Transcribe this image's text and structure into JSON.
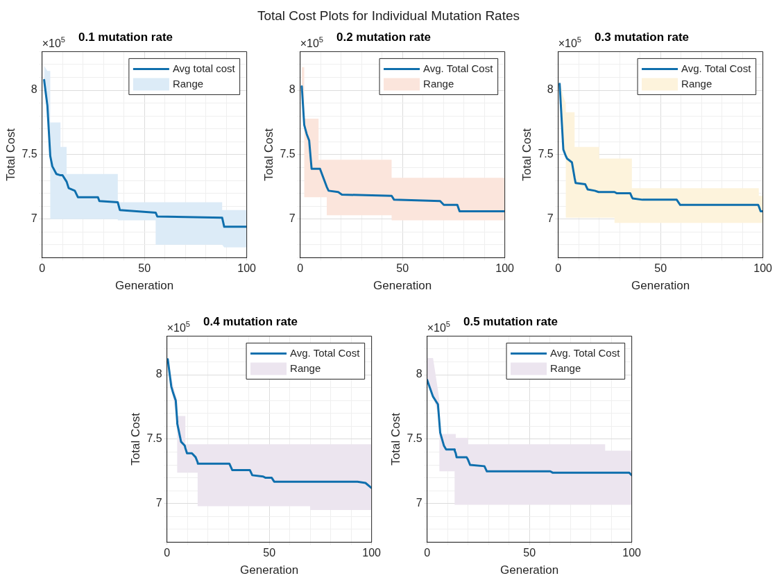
{
  "chart_data": [
    {
      "type": "line",
      "title": "0.1 mutation rate",
      "xlabel": "Generation",
      "ylabel": "Total Cost",
      "annotations": [
        "×10$^{5}$",
        "Total Cost Plots for Individual Mutation Rates"
      ],
      "xlim": [
        0,
        100
      ],
      "xticks": [
        0,
        {
          "value": 10,
          "label": null
        },
        {
          "value": 20,
          "label": null
        },
        {
          "value": 30,
          "label": null
        },
        {
          "value": 40,
          "label": null
        },
        50,
        {
          "value": 60,
          "label": null
        },
        {
          "value": 70,
          "label": null
        },
        {
          "value": 80,
          "label": null
        },
        {
          "value": 90,
          "label": null
        },
        100
      ],
      "ylim": [
        6.7,
        8.3
      ],
      "yticks": [
        {
          "value": 6.7,
          "label": null
        },
        {
          "value": 6.8,
          "label": null
        },
        {
          "value": 6.9,
          "label": null
        },
        7,
        {
          "value": 7.1,
          "label": null
        },
        {
          "value": 7.2,
          "label": null
        },
        {
          "value": 7.3,
          "label": null
        },
        {
          "value": 7.4,
          "label": null
        },
        7.5,
        {
          "value": 7.6,
          "label": null
        },
        {
          "value": 7.7,
          "label": null
        },
        {
          "value": 7.8,
          "label": null
        },
        {
          "value": 7.9,
          "label": null
        },
        8,
        {
          "value": 8.1,
          "label": null
        },
        {
          "value": 8.2,
          "label": null
        },
        {
          "value": 8.3,
          "label": null
        }
      ],
      "grid": true,
      "legend": "top right",
      "series": [
        {
          "name": "Avg total cost",
          "type": "line",
          "color": "#0f6fad",
          "x": [
            1,
            2.6,
            4,
            4,
            5,
            7,
            9,
            9,
            10,
            12,
            12,
            13,
            16,
            17.5,
            27.3,
            28,
            37,
            37,
            38,
            55.5,
            55.5,
            56.3,
            88,
            88,
            89,
            100
          ],
          "values": [
            8.08,
            7.88,
            7.49,
            7.49,
            7.41,
            7.35,
            7.34,
            7.34,
            7.34,
            7.29,
            7.29,
            7.24,
            7.22,
            7.17,
            7.17,
            7.14,
            7.13,
            7.13,
            7.07,
            7.05,
            7.05,
            7.02,
            7.01,
            7.01,
            6.94,
            6.94
          ],
          "lower": [
            8.0,
            7.86,
            7.49,
            7.0,
            7.0,
            7.0,
            7.0,
            7.0,
            7.0,
            7.0,
            7.0,
            7.0,
            7.0,
            7.0,
            7.0,
            7.0,
            7.0,
            6.99,
            6.99,
            6.99,
            6.8,
            6.8,
            6.8,
            6.8,
            6.78,
            6.78
          ],
          "upper": [
            8.19,
            8.15,
            8.15,
            7.75,
            7.75,
            7.75,
            7.75,
            7.56,
            7.56,
            7.56,
            7.35,
            7.35,
            7.35,
            7.35,
            7.35,
            7.35,
            7.35,
            7.13,
            7.13,
            7.13,
            7.13,
            7.13,
            7.13,
            7.07,
            7.07,
            7.07
          ]
        },
        {
          "name": "Range",
          "type": "area",
          "color": "#dcebf7"
        }
      ]
    },
    {
      "type": "line",
      "title": "0.2 mutation rate",
      "xlabel": "Generation",
      "ylabel": "Total Cost",
      "annotations": [
        "×10$^{5}$"
      ],
      "xlim": [
        0,
        100
      ],
      "xticks": [
        0,
        {
          "value": 10,
          "label": null
        },
        {
          "value": 20,
          "label": null
        },
        {
          "value": 30,
          "label": null
        },
        {
          "value": 40,
          "label": null
        },
        50,
        {
          "value": 60,
          "label": null
        },
        {
          "value": 70,
          "label": null
        },
        {
          "value": 80,
          "label": null
        },
        {
          "value": 90,
          "label": null
        },
        100
      ],
      "ylim": [
        6.7,
        8.3
      ],
      "yticks": [
        {
          "value": 6.7,
          "label": null
        },
        {
          "value": 6.8,
          "label": null
        },
        {
          "value": 6.9,
          "label": null
        },
        7,
        {
          "value": 7.1,
          "label": null
        },
        {
          "value": 7.2,
          "label": null
        },
        {
          "value": 7.3,
          "label": null
        },
        {
          "value": 7.4,
          "label": null
        },
        7.5,
        {
          "value": 7.6,
          "label": null
        },
        {
          "value": 7.7,
          "label": null
        },
        {
          "value": 7.8,
          "label": null
        },
        {
          "value": 7.9,
          "label": null
        },
        8,
        {
          "value": 8.1,
          "label": null
        },
        {
          "value": 8.2,
          "label": null
        },
        {
          "value": 8.3,
          "label": null
        }
      ],
      "grid": true,
      "legend": "top right",
      "series": [
        {
          "name": "Avg. Total Cost",
          "type": "line",
          "color": "#0f6fad",
          "x": [
            0.8,
            2,
            2,
            3.2,
            4.4,
            5.6,
            9,
            9,
            9.7,
            13,
            13,
            13.9,
            18.6,
            20.4,
            44.7,
            44.7,
            45.9,
            68.4,
            70.2,
            76.8,
            77.9,
            88.6,
            100
          ],
          "values": [
            8.03,
            7.73,
            7.73,
            7.66,
            7.61,
            7.39,
            7.39,
            7.39,
            7.39,
            7.25,
            7.25,
            7.22,
            7.21,
            7.19,
            7.18,
            7.18,
            7.15,
            7.14,
            7.11,
            7.11,
            7.06,
            7.06,
            7.06
          ],
          "lower": [
            8.01,
            7.73,
            7.17,
            7.17,
            7.17,
            7.17,
            7.17,
            7.17,
            7.17,
            7.17,
            7.03,
            7.03,
            7.03,
            7.03,
            7.03,
            6.99,
            6.99,
            6.99,
            6.99,
            6.99,
            6.99,
            6.99,
            6.99
          ],
          "upper": [
            8.18,
            8.18,
            7.78,
            7.78,
            7.78,
            7.78,
            7.78,
            7.46,
            7.46,
            7.46,
            7.46,
            7.46,
            7.46,
            7.46,
            7.46,
            7.32,
            7.32,
            7.32,
            7.32,
            7.32,
            7.32,
            7.32,
            7.32
          ]
        },
        {
          "name": "Range",
          "type": "area",
          "color": "#fbe5dc"
        }
      ]
    },
    {
      "type": "line",
      "title": "0.3 mutation rate",
      "xlabel": "Generation",
      "ylabel": "Total Cost",
      "annotations": [
        "×10$^{5}$"
      ],
      "xlim": [
        0,
        100
      ],
      "xticks": [
        0,
        {
          "value": 10,
          "label": null
        },
        {
          "value": 20,
          "label": null
        },
        {
          "value": 30,
          "label": null
        },
        {
          "value": 40,
          "label": null
        },
        50,
        {
          "value": 60,
          "label": null
        },
        {
          "value": 70,
          "label": null
        },
        {
          "value": 80,
          "label": null
        },
        {
          "value": 90,
          "label": null
        },
        100
      ],
      "ylim": [
        6.7,
        8.3
      ],
      "yticks": [
        {
          "value": 6.7,
          "label": null
        },
        {
          "value": 6.8,
          "label": null
        },
        {
          "value": 6.9,
          "label": null
        },
        7,
        {
          "value": 7.1,
          "label": null
        },
        {
          "value": 7.2,
          "label": null
        },
        {
          "value": 7.3,
          "label": null
        },
        {
          "value": 7.4,
          "label": null
        },
        7.5,
        {
          "value": 7.6,
          "label": null
        },
        {
          "value": 7.7,
          "label": null
        },
        {
          "value": 7.8,
          "label": null
        },
        {
          "value": 7.9,
          "label": null
        },
        8,
        {
          "value": 8.1,
          "label": null
        },
        {
          "value": 8.2,
          "label": null
        },
        {
          "value": 8.3,
          "label": null
        }
      ],
      "grid": true,
      "legend": "top right",
      "series": [
        {
          "name": "Avg. Total Cost",
          "type": "line",
          "color": "#0f6fad",
          "x": [
            0.7,
            2.5,
            3.7,
            3.7,
            4.3,
            6.7,
            8,
            8,
            8.5,
            13.2,
            14.4,
            17.9,
            19.7,
            20,
            20,
            26.9,
            27.5,
            27.5,
            28.7,
            35.2,
            36,
            36,
            36.4,
            41.2,
            57.9,
            59.6,
            97.7,
            98,
            98,
            98.9,
            100
          ],
          "values": [
            8.05,
            7.54,
            7.49,
            7.49,
            7.47,
            7.44,
            7.32,
            7.32,
            7.28,
            7.27,
            7.23,
            7.22,
            7.21,
            7.21,
            7.21,
            7.21,
            7.21,
            7.21,
            7.2,
            7.2,
            7.17,
            7.17,
            7.16,
            7.15,
            7.15,
            7.11,
            7.11,
            7.1,
            7.1,
            7.06,
            7.06
          ],
          "lower": [
            8.03,
            7.54,
            7.49,
            7.01,
            7.01,
            7.01,
            7.01,
            7.01,
            7.01,
            7.01,
            7.01,
            7.01,
            7.01,
            7.01,
            7.01,
            7.01,
            7.01,
            6.97,
            6.97,
            6.97,
            6.97,
            6.97,
            6.97,
            6.97,
            6.97,
            6.97,
            6.97,
            6.97,
            6.97,
            6.97,
            6.97
          ],
          "upper": [
            8.07,
            7.95,
            7.9,
            7.83,
            7.83,
            7.83,
            7.83,
            7.56,
            7.56,
            7.56,
            7.56,
            7.56,
            7.56,
            7.56,
            7.47,
            7.47,
            7.47,
            7.47,
            7.47,
            7.47,
            7.47,
            7.24,
            7.24,
            7.24,
            7.24,
            7.24,
            7.24,
            7.24,
            7.18,
            7.18,
            7.18
          ]
        },
        {
          "name": "Range",
          "type": "area",
          "color": "#fdf3dc"
        }
      ]
    },
    {
      "type": "line",
      "title": "0.4 mutation rate",
      "xlabel": "Generation",
      "ylabel": "Total Cost",
      "annotations": [
        "×10$^{5}$"
      ],
      "xlim": [
        0,
        100
      ],
      "xticks": [
        0,
        {
          "value": 10,
          "label": null
        },
        {
          "value": 20,
          "label": null
        },
        {
          "value": 30,
          "label": null
        },
        {
          "value": 40,
          "label": null
        },
        50,
        {
          "value": 60,
          "label": null
        },
        {
          "value": 70,
          "label": null
        },
        {
          "value": 80,
          "label": null
        },
        {
          "value": 90,
          "label": null
        },
        100
      ],
      "ylim": [
        6.7,
        8.3
      ],
      "yticks": [
        {
          "value": 6.7,
          "label": null
        },
        {
          "value": 6.8,
          "label": null
        },
        {
          "value": 6.9,
          "label": null
        },
        7,
        {
          "value": 7.1,
          "label": null
        },
        {
          "value": 7.2,
          "label": null
        },
        {
          "value": 7.3,
          "label": null
        },
        {
          "value": 7.4,
          "label": null
        },
        7.5,
        {
          "value": 7.6,
          "label": null
        },
        {
          "value": 7.7,
          "label": null
        },
        {
          "value": 7.8,
          "label": null
        },
        {
          "value": 7.9,
          "label": null
        },
        8,
        {
          "value": 8.1,
          "label": null
        },
        {
          "value": 8.2,
          "label": null
        },
        {
          "value": 8.3,
          "label": null
        }
      ],
      "grid": true,
      "legend": "top right",
      "series": [
        {
          "name": "Avg. Total Cost",
          "type": "line",
          "color": "#0f6fad",
          "x": [
            0.4,
            2.1,
            3,
            4.3,
            5,
            5,
            5.1,
            6.9,
            8.7,
            9,
            9,
            9.8,
            12.2,
            14,
            15,
            15,
            15.1,
            30.5,
            31.9,
            40.5,
            41.7,
            47,
            48.2,
            51.2,
            52.4,
            70,
            70,
            93.1,
            97,
            100
          ],
          "values": [
            8.12,
            7.91,
            7.86,
            7.8,
            7.64,
            7.64,
            7.62,
            7.48,
            7.45,
            7.43,
            7.43,
            7.39,
            7.39,
            7.36,
            7.32,
            7.32,
            7.31,
            7.31,
            7.26,
            7.26,
            7.22,
            7.21,
            7.2,
            7.2,
            7.17,
            7.17,
            7.17,
            7.17,
            7.16,
            7.12
          ],
          "lower": [
            8.1,
            7.9,
            7.82,
            7.7,
            7.62,
            7.24,
            7.24,
            7.24,
            7.24,
            7.24,
            7.24,
            7.24,
            7.24,
            7.24,
            7.24,
            6.98,
            6.98,
            6.98,
            6.98,
            6.98,
            6.98,
            6.98,
            6.98,
            6.98,
            6.98,
            6.98,
            6.95,
            6.95,
            6.95,
            6.95
          ],
          "upper": [
            8.14,
            7.98,
            7.92,
            7.84,
            7.8,
            7.68,
            7.68,
            7.68,
            7.68,
            7.68,
            7.46,
            7.46,
            7.46,
            7.46,
            7.46,
            7.46,
            7.46,
            7.46,
            7.46,
            7.46,
            7.46,
            7.46,
            7.46,
            7.46,
            7.46,
            7.46,
            7.46,
            7.46,
            7.46,
            7.46
          ]
        },
        {
          "name": "Range",
          "type": "area",
          "color": "#ece5ef"
        }
      ]
    },
    {
      "type": "line",
      "title": "0.5 mutation rate",
      "xlabel": "Generation",
      "ylabel": "Total Cost",
      "annotations": [
        "×10$^{5}$"
      ],
      "xlim": [
        0,
        100
      ],
      "xticks": [
        0,
        {
          "value": 10,
          "label": null
        },
        {
          "value": 20,
          "label": null
        },
        {
          "value": 30,
          "label": null
        },
        {
          "value": 40,
          "label": null
        },
        50,
        {
          "value": 60,
          "label": null
        },
        {
          "value": 70,
          "label": null
        },
        {
          "value": 80,
          "label": null
        },
        {
          "value": 90,
          "label": null
        },
        100
      ],
      "ylim": [
        6.7,
        8.3
      ],
      "yticks": [
        {
          "value": 6.7,
          "label": null
        },
        {
          "value": 6.8,
          "label": null
        },
        {
          "value": 6.9,
          "label": null
        },
        7,
        {
          "value": 7.1,
          "label": null
        },
        {
          "value": 7.2,
          "label": null
        },
        {
          "value": 7.3,
          "label": null
        },
        {
          "value": 7.4,
          "label": null
        },
        7.5,
        {
          "value": 7.6,
          "label": null
        },
        {
          "value": 7.7,
          "label": null
        },
        {
          "value": 7.8,
          "label": null
        },
        {
          "value": 7.9,
          "label": null
        },
        8,
        {
          "value": 8.1,
          "label": null
        },
        {
          "value": 8.2,
          "label": null
        },
        {
          "value": 8.3,
          "label": null
        }
      ],
      "grid": true,
      "legend": "top right",
      "series": [
        {
          "name": "Avg. Total Cost",
          "type": "line",
          "color": "#0f6fad",
          "x": [
            0,
            2.9,
            5.3,
            6,
            6,
            6.4,
            8.2,
            9.3,
            13.4,
            13.5,
            13.5,
            14,
            14,
            14.4,
            19.3,
            20,
            20,
            21,
            28,
            29.2,
            60.2,
            61.3,
            87,
            87,
            98.7,
            100
          ],
          "values": [
            7.96,
            7.83,
            7.77,
            7.63,
            7.63,
            7.55,
            7.45,
            7.42,
            7.42,
            7.41,
            7.41,
            7.39,
            7.39,
            7.36,
            7.36,
            7.34,
            7.34,
            7.3,
            7.29,
            7.25,
            7.25,
            7.24,
            7.24,
            7.24,
            7.24,
            7.22
          ],
          "lower": [
            7.96,
            7.83,
            7.7,
            7.6,
            7.25,
            7.25,
            7.25,
            7.25,
            7.25,
            7.25,
            6.99,
            6.99,
            6.99,
            6.99,
            6.99,
            6.99,
            6.99,
            6.99,
            6.99,
            6.99,
            6.99,
            6.99,
            6.99,
            6.99,
            6.99,
            6.99
          ],
          "upper": [
            8.13,
            8.13,
            7.88,
            7.8,
            7.54,
            7.54,
            7.54,
            7.54,
            7.54,
            7.54,
            7.54,
            7.54,
            7.51,
            7.51,
            7.51,
            7.51,
            7.46,
            7.46,
            7.46,
            7.46,
            7.46,
            7.46,
            7.46,
            7.41,
            7.41,
            7.41
          ]
        },
        {
          "name": "Range",
          "type": "area",
          "color": "#ece5ef"
        }
      ]
    }
  ]
}
